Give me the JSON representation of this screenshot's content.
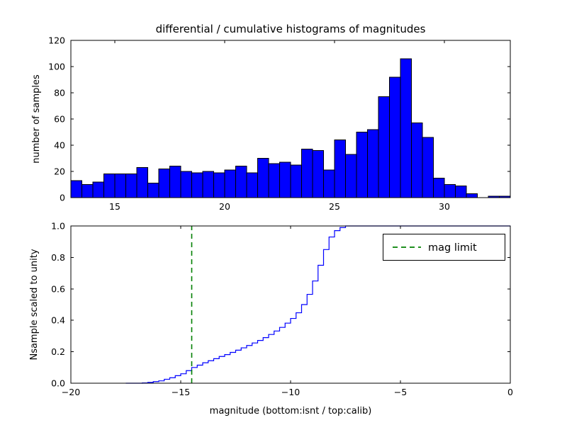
{
  "title": "differential / cumulative histograms of magnitudes",
  "colors": {
    "background": "#ffffff",
    "bar_fill": "#0000ff",
    "bar_edge": "#000000",
    "step_line": "#0000ff",
    "mag_limit": "#008000",
    "axes": "#000000"
  },
  "chart_data": [
    {
      "type": "bar",
      "subtype": "histogram",
      "title": "differential / cumulative histograms of magnitudes",
      "xlabel": "",
      "ylabel": "number of samples",
      "xlim": [
        13,
        33
      ],
      "ylim": [
        0,
        120
      ],
      "grid": false,
      "xticks": [
        15,
        20,
        25,
        30
      ],
      "xtick_labels": [
        "15",
        "20",
        "25",
        "30"
      ],
      "yticks": [
        0,
        20,
        40,
        60,
        80,
        100,
        120
      ],
      "ytick_labels": [
        "0",
        "20",
        "40",
        "60",
        "80",
        "100",
        "120"
      ],
      "bin_start": 13.0,
      "bin_width": 0.5,
      "values": [
        13,
        10,
        12,
        18,
        18,
        18,
        23,
        11,
        22,
        24,
        20,
        19,
        20,
        19,
        21,
        24,
        19,
        30,
        26,
        27,
        25,
        37,
        36,
        21,
        44,
        33,
        50,
        52,
        77,
        92,
        106,
        57,
        46,
        15,
        10,
        9,
        3,
        0,
        1,
        1
      ]
    },
    {
      "type": "line",
      "subtype": "cumulative-step",
      "title": "",
      "xlabel": "magnitude (bottom:isnt / top:calib)",
      "ylabel": "Nsample scaled to unity",
      "xlim": [
        -20,
        0
      ],
      "ylim": [
        0,
        1.0
      ],
      "grid": false,
      "xticks": [
        -20,
        -15,
        -10,
        -5,
        0
      ],
      "xtick_labels": [
        "−20",
        "−15",
        "−10",
        "−5",
        "0"
      ],
      "yticks": [
        0.0,
        0.2,
        0.4,
        0.6,
        0.8,
        1.0
      ],
      "ytick_labels": [
        "0.0",
        "0.2",
        "0.4",
        "0.6",
        "0.8",
        "1.0"
      ],
      "mag_limit_x": -14.5,
      "legend": {
        "label": "mag limit",
        "line_style": "dashed",
        "color": "#008000",
        "position": "upper right"
      },
      "step_points": [
        [
          -17.5,
          0.0
        ],
        [
          -16.75,
          0.002
        ],
        [
          -16.5,
          0.005
        ],
        [
          -16.25,
          0.01
        ],
        [
          -16.0,
          0.015
        ],
        [
          -15.75,
          0.025
        ],
        [
          -15.5,
          0.035
        ],
        [
          -15.25,
          0.048
        ],
        [
          -15.0,
          0.06
        ],
        [
          -14.75,
          0.08
        ],
        [
          -14.5,
          0.1
        ],
        [
          -14.25,
          0.115
        ],
        [
          -14.0,
          0.13
        ],
        [
          -13.75,
          0.143
        ],
        [
          -13.5,
          0.156
        ],
        [
          -13.25,
          0.17
        ],
        [
          -13.0,
          0.182
        ],
        [
          -12.75,
          0.196
        ],
        [
          -12.5,
          0.21
        ],
        [
          -12.25,
          0.225
        ],
        [
          -12.0,
          0.24
        ],
        [
          -11.75,
          0.256
        ],
        [
          -11.5,
          0.272
        ],
        [
          -11.25,
          0.29
        ],
        [
          -11.0,
          0.31
        ],
        [
          -10.75,
          0.332
        ],
        [
          -10.5,
          0.355
        ],
        [
          -10.25,
          0.382
        ],
        [
          -10.0,
          0.412
        ],
        [
          -9.75,
          0.448
        ],
        [
          -9.5,
          0.5
        ],
        [
          -9.25,
          0.565
        ],
        [
          -9.0,
          0.65
        ],
        [
          -8.75,
          0.75
        ],
        [
          -8.5,
          0.85
        ],
        [
          -8.25,
          0.93
        ],
        [
          -8.0,
          0.97
        ],
        [
          -7.75,
          0.99
        ],
        [
          -7.5,
          1.0
        ],
        [
          0,
          1.0
        ]
      ]
    }
  ]
}
